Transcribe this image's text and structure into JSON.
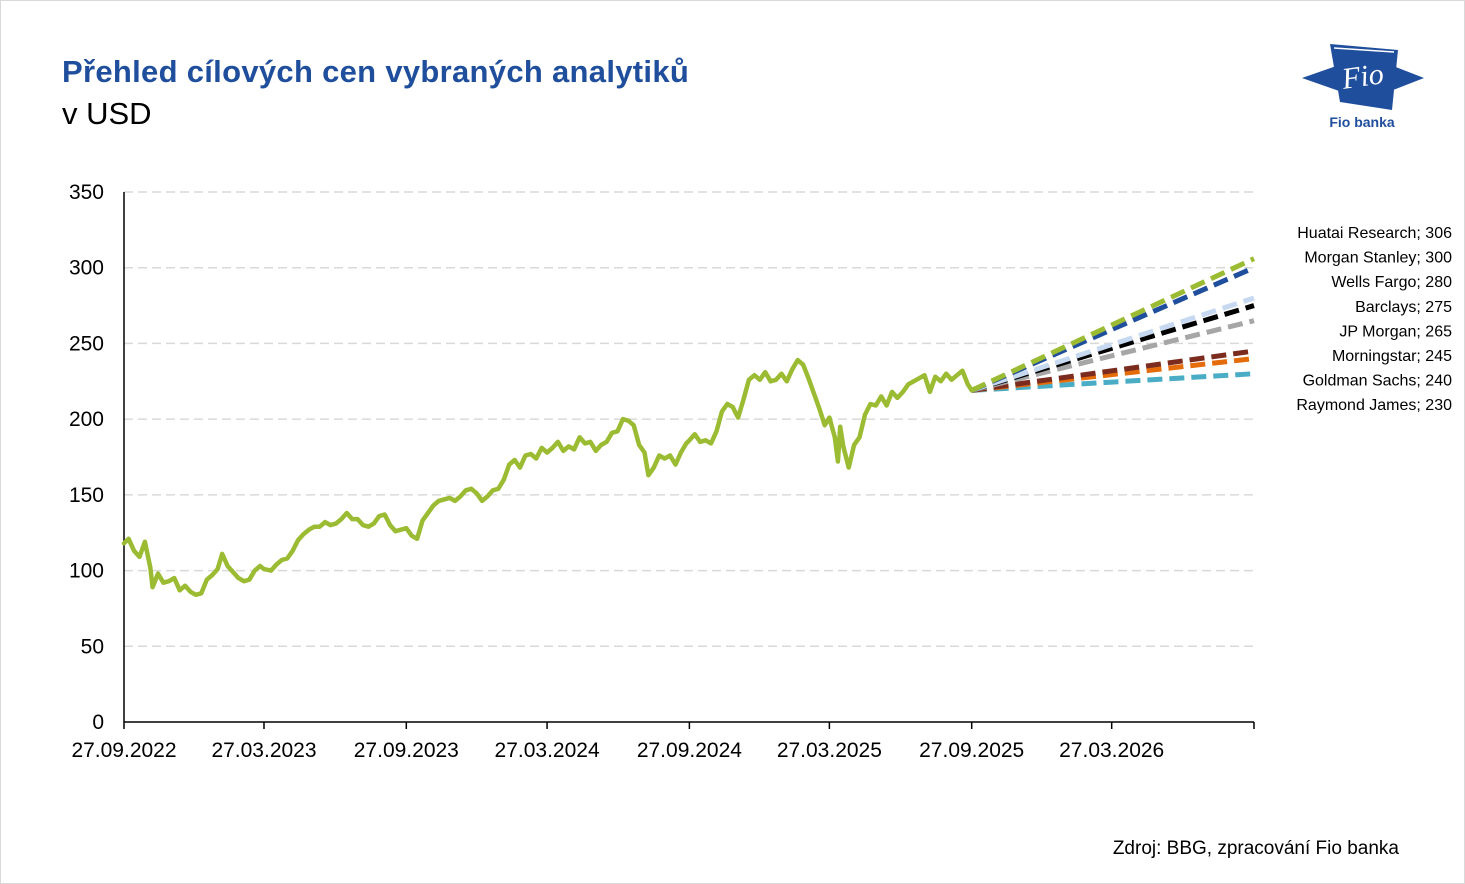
{
  "header": {
    "title": "Přehled cílových cen vybraných analytiků",
    "subtitle": "v USD",
    "logo_text": "Fio banka",
    "logo_mark": "Fio",
    "source": "Zdroj: BBG, zpracování Fio banka"
  },
  "colors": {
    "title": "#1f4e9d",
    "price_line": "#9bbb33",
    "grid": "#d9d9d9",
    "axis": "#000000",
    "logo": "#1f4e9d"
  },
  "chart_data": {
    "type": "line",
    "title": "Přehled cílových cen vybraných analytiků",
    "subtitle": "v USD",
    "xlabel": "",
    "ylabel": "",
    "ylim": [
      0,
      350
    ],
    "yticks": [
      0,
      50,
      100,
      150,
      200,
      250,
      300,
      350
    ],
    "xlim": [
      "2022-09-27",
      "2026-09-27"
    ],
    "xticks": [
      {
        "date": "2022-09-27",
        "label": "27.09.2022"
      },
      {
        "date": "2023-03-27",
        "label": "27.03.2023"
      },
      {
        "date": "2023-09-27",
        "label": "27.09.2023"
      },
      {
        "date": "2024-03-27",
        "label": "27.03.2024"
      },
      {
        "date": "2024-09-27",
        "label": "27.09.2024"
      },
      {
        "date": "2025-03-27",
        "label": "27.03.2025"
      },
      {
        "date": "2025-09-27",
        "label": "27.09.2025"
      },
      {
        "date": "2026-03-27",
        "label": "27.03.2026"
      }
    ],
    "grid": true,
    "price_series": {
      "color": "#9bbb33",
      "points": [
        [
          "2022-09-27",
          118
        ],
        [
          "2022-10-03",
          121
        ],
        [
          "2022-10-10",
          113
        ],
        [
          "2022-10-17",
          109
        ],
        [
          "2022-10-24",
          119
        ],
        [
          "2022-10-31",
          102
        ],
        [
          "2022-11-03",
          89
        ],
        [
          "2022-11-10",
          98
        ],
        [
          "2022-11-17",
          92
        ],
        [
          "2022-11-24",
          93
        ],
        [
          "2022-12-01",
          95
        ],
        [
          "2022-12-08",
          87
        ],
        [
          "2022-12-15",
          90
        ],
        [
          "2022-12-22",
          86
        ],
        [
          "2022-12-29",
          84
        ],
        [
          "2023-01-05",
          85
        ],
        [
          "2023-01-12",
          94
        ],
        [
          "2023-01-19",
          97
        ],
        [
          "2023-01-26",
          101
        ],
        [
          "2023-02-01",
          111
        ],
        [
          "2023-02-08",
          103
        ],
        [
          "2023-02-15",
          99
        ],
        [
          "2023-02-22",
          95
        ],
        [
          "2023-03-01",
          93
        ],
        [
          "2023-03-08",
          94
        ],
        [
          "2023-03-15",
          100
        ],
        [
          "2023-03-22",
          103
        ],
        [
          "2023-03-27",
          101
        ],
        [
          "2023-04-05",
          100
        ],
        [
          "2023-04-12",
          104
        ],
        [
          "2023-04-19",
          107
        ],
        [
          "2023-04-26",
          108
        ],
        [
          "2023-05-03",
          113
        ],
        [
          "2023-05-10",
          120
        ],
        [
          "2023-05-17",
          124
        ],
        [
          "2023-05-24",
          127
        ],
        [
          "2023-05-31",
          129
        ],
        [
          "2023-06-07",
          129
        ],
        [
          "2023-06-14",
          132
        ],
        [
          "2023-06-21",
          130
        ],
        [
          "2023-06-28",
          131
        ],
        [
          "2023-07-05",
          134
        ],
        [
          "2023-07-12",
          138
        ],
        [
          "2023-07-19",
          134
        ],
        [
          "2023-07-26",
          134
        ],
        [
          "2023-08-02",
          130
        ],
        [
          "2023-08-09",
          129
        ],
        [
          "2023-08-16",
          131
        ],
        [
          "2023-08-23",
          136
        ],
        [
          "2023-08-30",
          137
        ],
        [
          "2023-09-06",
          130
        ],
        [
          "2023-09-13",
          126
        ],
        [
          "2023-09-20",
          127
        ],
        [
          "2023-09-27",
          128
        ],
        [
          "2023-10-04",
          123
        ],
        [
          "2023-10-11",
          121
        ],
        [
          "2023-10-18",
          133
        ],
        [
          "2023-10-25",
          138
        ],
        [
          "2023-11-01",
          143
        ],
        [
          "2023-11-08",
          146
        ],
        [
          "2023-11-15",
          147
        ],
        [
          "2023-11-22",
          148
        ],
        [
          "2023-11-29",
          146
        ],
        [
          "2023-12-06",
          149
        ],
        [
          "2023-12-13",
          153
        ],
        [
          "2023-12-20",
          154
        ],
        [
          "2023-12-27",
          151
        ],
        [
          "2024-01-03",
          146
        ],
        [
          "2024-01-10",
          149
        ],
        [
          "2024-01-17",
          153
        ],
        [
          "2024-01-24",
          154
        ],
        [
          "2024-01-31",
          160
        ],
        [
          "2024-02-07",
          170
        ],
        [
          "2024-02-14",
          173
        ],
        [
          "2024-02-21",
          168
        ],
        [
          "2024-02-28",
          176
        ],
        [
          "2024-03-06",
          177
        ],
        [
          "2024-03-13",
          174
        ],
        [
          "2024-03-20",
          181
        ],
        [
          "2024-03-27",
          178
        ],
        [
          "2024-04-03",
          181
        ],
        [
          "2024-04-10",
          185
        ],
        [
          "2024-04-17",
          179
        ],
        [
          "2024-04-24",
          182
        ],
        [
          "2024-05-01",
          180
        ],
        [
          "2024-05-08",
          188
        ],
        [
          "2024-05-15",
          184
        ],
        [
          "2024-05-22",
          185
        ],
        [
          "2024-05-29",
          179
        ],
        [
          "2024-06-05",
          183
        ],
        [
          "2024-06-12",
          185
        ],
        [
          "2024-06-19",
          191
        ],
        [
          "2024-06-26",
          192
        ],
        [
          "2024-07-03",
          200
        ],
        [
          "2024-07-10",
          199
        ],
        [
          "2024-07-17",
          196
        ],
        [
          "2024-07-24",
          183
        ],
        [
          "2024-07-31",
          178
        ],
        [
          "2024-08-05",
          163
        ],
        [
          "2024-08-12",
          168
        ],
        [
          "2024-08-19",
          176
        ],
        [
          "2024-08-26",
          174
        ],
        [
          "2024-09-02",
          176
        ],
        [
          "2024-09-09",
          170
        ],
        [
          "2024-09-16",
          178
        ],
        [
          "2024-09-23",
          184
        ],
        [
          "2024-09-27",
          186
        ],
        [
          "2024-10-04",
          190
        ],
        [
          "2024-10-11",
          185
        ],
        [
          "2024-10-18",
          186
        ],
        [
          "2024-10-25",
          184
        ],
        [
          "2024-11-01",
          192
        ],
        [
          "2024-11-08",
          205
        ],
        [
          "2024-11-15",
          210
        ],
        [
          "2024-11-22",
          208
        ],
        [
          "2024-11-29",
          201
        ],
        [
          "2024-12-06",
          213
        ],
        [
          "2024-12-13",
          226
        ],
        [
          "2024-12-20",
          229
        ],
        [
          "2024-12-27",
          226
        ],
        [
          "2025-01-03",
          231
        ],
        [
          "2025-01-10",
          225
        ],
        [
          "2025-01-17",
          226
        ],
        [
          "2025-01-24",
          230
        ],
        [
          "2025-01-31",
          225
        ],
        [
          "2025-02-07",
          233
        ],
        [
          "2025-02-14",
          239
        ],
        [
          "2025-02-21",
          236
        ],
        [
          "2025-02-28",
          227
        ],
        [
          "2025-03-07",
          217
        ],
        [
          "2025-03-14",
          207
        ],
        [
          "2025-03-21",
          196
        ],
        [
          "2025-03-27",
          201
        ],
        [
          "2025-04-03",
          188
        ],
        [
          "2025-04-07",
          172
        ],
        [
          "2025-04-10",
          195
        ],
        [
          "2025-04-14",
          182
        ],
        [
          "2025-04-21",
          168
        ],
        [
          "2025-04-28",
          183
        ],
        [
          "2025-05-05",
          188
        ],
        [
          "2025-05-12",
          203
        ],
        [
          "2025-05-19",
          210
        ],
        [
          "2025-05-26",
          209
        ],
        [
          "2025-06-02",
          215
        ],
        [
          "2025-06-09",
          209
        ],
        [
          "2025-06-16",
          218
        ],
        [
          "2025-06-23",
          214
        ],
        [
          "2025-06-30",
          218
        ],
        [
          "2025-07-07",
          223
        ],
        [
          "2025-07-14",
          225
        ],
        [
          "2025-07-21",
          227
        ],
        [
          "2025-07-28",
          229
        ],
        [
          "2025-08-04",
          218
        ],
        [
          "2025-08-11",
          228
        ],
        [
          "2025-08-18",
          225
        ],
        [
          "2025-08-25",
          230
        ],
        [
          "2025-09-01",
          226
        ],
        [
          "2025-09-08",
          229
        ],
        [
          "2025-09-15",
          232
        ],
        [
          "2025-09-22",
          223
        ],
        [
          "2025-09-27",
          219
        ]
      ]
    },
    "series": [
      {
        "name": "Huatai Research",
        "value": 306,
        "color": "#9bbb33",
        "label": "Huatai Research; 306"
      },
      {
        "name": "Morgan Stanley",
        "value": 300,
        "color": "#1f4e9d",
        "label": "Morgan Stanley; 300"
      },
      {
        "name": "Wells Fargo",
        "value": 280,
        "color": "#c6d9f1",
        "label": "Wells Fargo; 280"
      },
      {
        "name": "Barclays",
        "value": 275,
        "color": "#000000",
        "label": "Barclays; 275"
      },
      {
        "name": "JP Morgan",
        "value": 265,
        "color": "#a6a6a6",
        "label": "JP Morgan; 265"
      },
      {
        "name": "Morningstar",
        "value": 245,
        "color": "#7b2c1e",
        "label": "Morningstar; 245"
      },
      {
        "name": "Goldman Sachs",
        "value": 240,
        "color": "#e46c0a",
        "label": "Goldman Sachs; 240"
      },
      {
        "name": "Raymond James",
        "value": 230,
        "color": "#4bacc6",
        "label": "Raymond James; 230"
      }
    ],
    "forecast_start": {
      "date": "2025-09-27",
      "value": 219
    },
    "forecast_end": {
      "date": "2026-09-27"
    }
  }
}
